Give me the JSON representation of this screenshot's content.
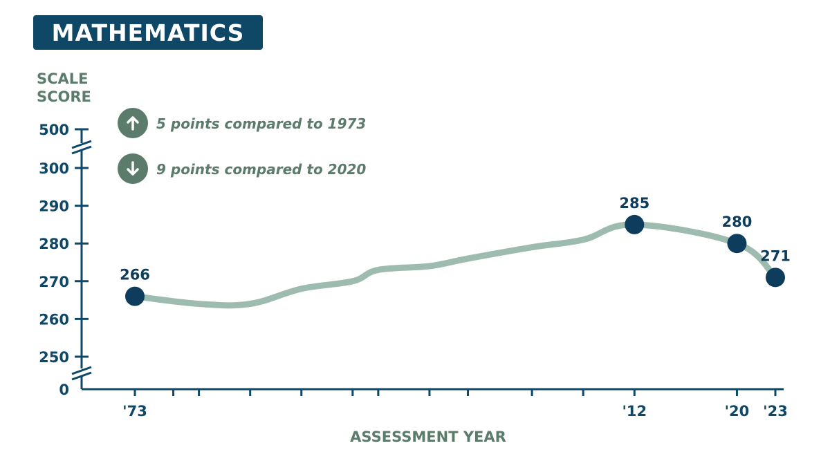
{
  "chart_data": {
    "type": "line",
    "title": "MATHEMATICS",
    "ylabel": [
      "SCALE",
      "SCORE"
    ],
    "xlabel": "ASSESSMENT YEAR",
    "ylim": [
      250,
      300
    ],
    "y_axis_break": true,
    "y_ticks": [
      0,
      250,
      260,
      270,
      280,
      290,
      300,
      500
    ],
    "x_tick_labels": [
      "'73",
      "'12",
      "'20",
      "'23"
    ],
    "x_range": [
      1973,
      2023
    ],
    "x_minor_ticks": [
      1973,
      1976,
      1978,
      1982,
      1986,
      1990,
      1992,
      1996,
      1999,
      2004,
      2008,
      2012,
      2020,
      2023
    ],
    "series": [
      {
        "x": [
          1973,
          1978,
          1982,
          1986,
          1990,
          1992,
          1996,
          1999,
          2004,
          2008,
          2012,
          2020,
          2023
        ],
        "values": [
          266,
          264,
          264,
          268,
          270,
          273,
          274,
          276,
          279,
          281,
          285,
          280,
          271
        ],
        "labeled_points": [
          {
            "x": 1973,
            "label": "266"
          },
          {
            "x": 2012,
            "label": "285"
          },
          {
            "x": 2020,
            "label": "280"
          },
          {
            "x": 2023,
            "label": "271"
          }
        ]
      }
    ],
    "annotations": [
      {
        "direction": "up",
        "text": "5 points compared to 1973"
      },
      {
        "direction": "down",
        "text": "9 points compared to 2020"
      }
    ],
    "colors": {
      "title_bg": "#0f4866",
      "axis": "#0f4866",
      "label_green": "#5b7b6b",
      "line": "#9dbcaf",
      "marker": "#0d3c5c"
    }
  }
}
